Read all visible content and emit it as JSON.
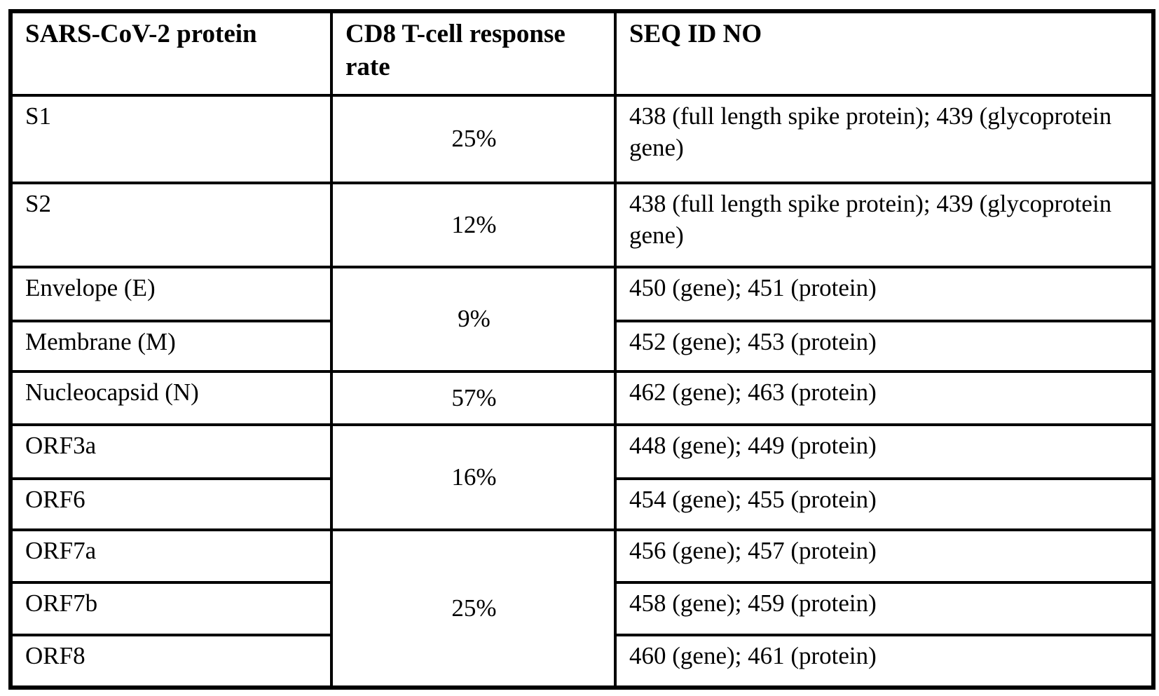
{
  "table": {
    "headers": {
      "protein": "SARS-CoV-2 protein",
      "response_rate": "CD8 T-cell response rate",
      "seq_id": "SEQ ID NO"
    },
    "rows": [
      {
        "protein": "S1",
        "rate": "25%",
        "seq": "438 (full length spike protein); 439 (glycoprotein gene)"
      },
      {
        "protein": "S2",
        "rate": "12%",
        "seq": "438 (full length spike protein); 439 (glycoprotein gene)"
      },
      {
        "protein": "Envelope (E)",
        "rate": "9%",
        "seq": "450 (gene); 451 (protein)"
      },
      {
        "protein": "Membrane (M)",
        "seq": "452 (gene); 453 (protein)"
      },
      {
        "protein": "Nucleocapsid (N)",
        "rate": "57%",
        "seq": "462 (gene); 463 (protein)"
      },
      {
        "protein": "ORF3a",
        "rate": "16%",
        "seq": "448 (gene); 449 (protein)"
      },
      {
        "protein": "ORF6",
        "seq": "454 (gene); 455 (protein)"
      },
      {
        "protein": "ORF7a",
        "rate": "25%",
        "seq": "456 (gene); 457 (protein)"
      },
      {
        "protein": "ORF7b",
        "seq": "458 (gene); 459 (protein)"
      },
      {
        "protein": "ORF8",
        "seq": "460 (gene); 461 (protein)"
      }
    ],
    "colors": {
      "text": "#000000",
      "border": "#000000",
      "background": "#ffffff"
    }
  }
}
